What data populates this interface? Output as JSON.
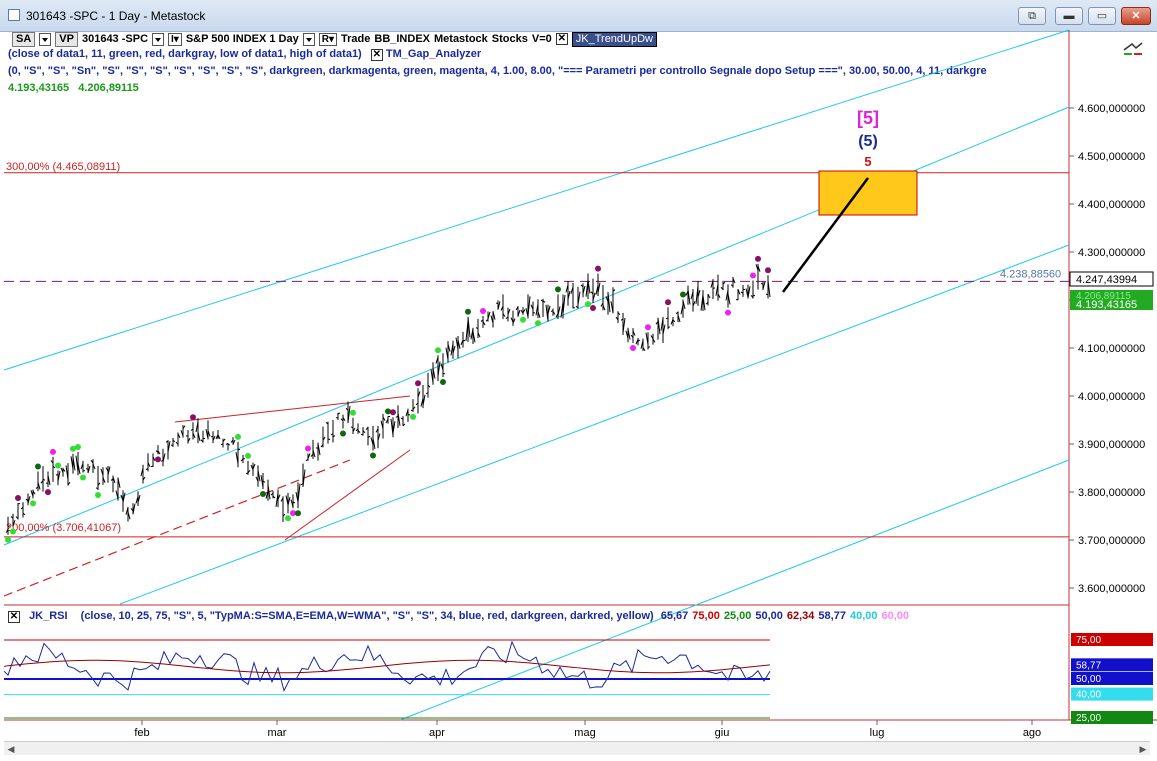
{
  "window": {
    "title": "301643 -SPC - 1 Day - Metastock",
    "buttons": {
      "b1": "⧉",
      "b2": "▬",
      "b3": "▭",
      "b4": "✕"
    }
  },
  "toolbar": {
    "sa": "SA",
    "vp": "VP",
    "symbol": "301643 -SPC",
    "instrument": "S&P 500 INDEX 1 Day",
    "r_button": "R",
    "trade": "Trade",
    "index": "BB_INDEX",
    "source": "Metastock",
    "type": "Stocks",
    "v": "V=0",
    "indicator": "JK_TrendUpDw"
  },
  "indicators": {
    "line1": "(close of data1,  11,  green,  red,  darkgray,  low of data1,  high of data1)",
    "gap_analyzer": "TM_Gap_Analyzer",
    "line2": "(0,  \"S\",  \"S\",  \"Sn\",  \"S\",  \"S\",  \"S\",  \"S\",  \"S\",  \"S\",  \"S\",  darkgreen,  darkmagenta,  green,  magenta,  4,  1.00,  8.00,  \"=== Parametri per controllo Segnale dopo Setup ===\",  30.00,  50.00,  4,  11,  darkgre",
    "price_a": "4.193,43165",
    "price_b": "4.206,89115"
  },
  "price_axis": {
    "ticks": [
      "4.600,000000",
      "4.500,000000",
      "4.400,000000",
      "4.300,000000",
      "4.200,000000",
      "4.100,000000",
      "4.000,000000",
      "3.900,000000",
      "3.800,000000",
      "3.700,000000",
      "3.600,000000"
    ],
    "tick_values": [
      4600,
      4500,
      4400,
      4300,
      4200,
      4100,
      4000,
      3900,
      3800,
      3700,
      3600
    ],
    "last_price_label": "4.247,43994",
    "green_label_hidden": "4.206,89115",
    "green_label": "4.193,43165",
    "dashed_level_label": "4.238,88560"
  },
  "levels": {
    "fib_300": "300,00% (4.465,08911)",
    "fib_300_value": 4465.09,
    "fib_200": "200,00% (3.706,41067)",
    "fib_200_value": 3706.41,
    "dashed_value": 4238.89
  },
  "wave_labels": {
    "bracket": "[5]",
    "paren": "(5)",
    "plain": "5"
  },
  "time_axis": [
    "feb",
    "mar",
    "apr",
    "mag",
    "giu",
    "lug",
    "ago"
  ],
  "rsi": {
    "name": "JK_RSI",
    "params": "(close,  10,  25,  75,  \"S\",  5,  \"TypMA:S=SMA,E=EMA,W=WMA\",  \"S\",  \"S\",  34,  blue,  red,  darkgreen,  darkred,  yellow)",
    "values": [
      {
        "text": "65,67",
        "color": "#1a2a9a"
      },
      {
        "text": "75,00",
        "color": "#cc0000"
      },
      {
        "text": "25,00",
        "color": "#118811"
      },
      {
        "text": "50,00",
        "color": "#1a2a9a"
      },
      {
        "text": "62,34",
        "color": "#990000"
      },
      {
        "text": "58,77",
        "color": "#1a2a9a"
      },
      {
        "text": "40,00",
        "color": "#22ccdd"
      },
      {
        "text": "60,00",
        "color": "#ff88ff"
      }
    ],
    "axis_labels": [
      {
        "text": "75,00",
        "bg": "#cc0000"
      },
      {
        "text": "58,77",
        "bg": "#1111cc"
      },
      {
        "text": "50,00",
        "bg": "#1111cc"
      },
      {
        "text": "40,00",
        "bg": "#33ddee"
      },
      {
        "text": "25,00",
        "bg": "#118811"
      }
    ],
    "level_values": [
      75,
      58.77,
      50,
      40,
      25
    ]
  },
  "colors": {
    "channel": "#22c8e8",
    "fib": "#cc2222",
    "target_box": "#ffc81a",
    "dot_green": "#33dd33",
    "dot_magenta": "#ee22ee",
    "dot_darkgreen": "#116611",
    "dot_darkmagenta": "#881166",
    "wave_magenta": "#dd22dd",
    "wave_blue": "#1a2a9a",
    "wave_red": "#cc1111"
  },
  "icons": {
    "chart_toggle": "arrows-icon"
  }
}
